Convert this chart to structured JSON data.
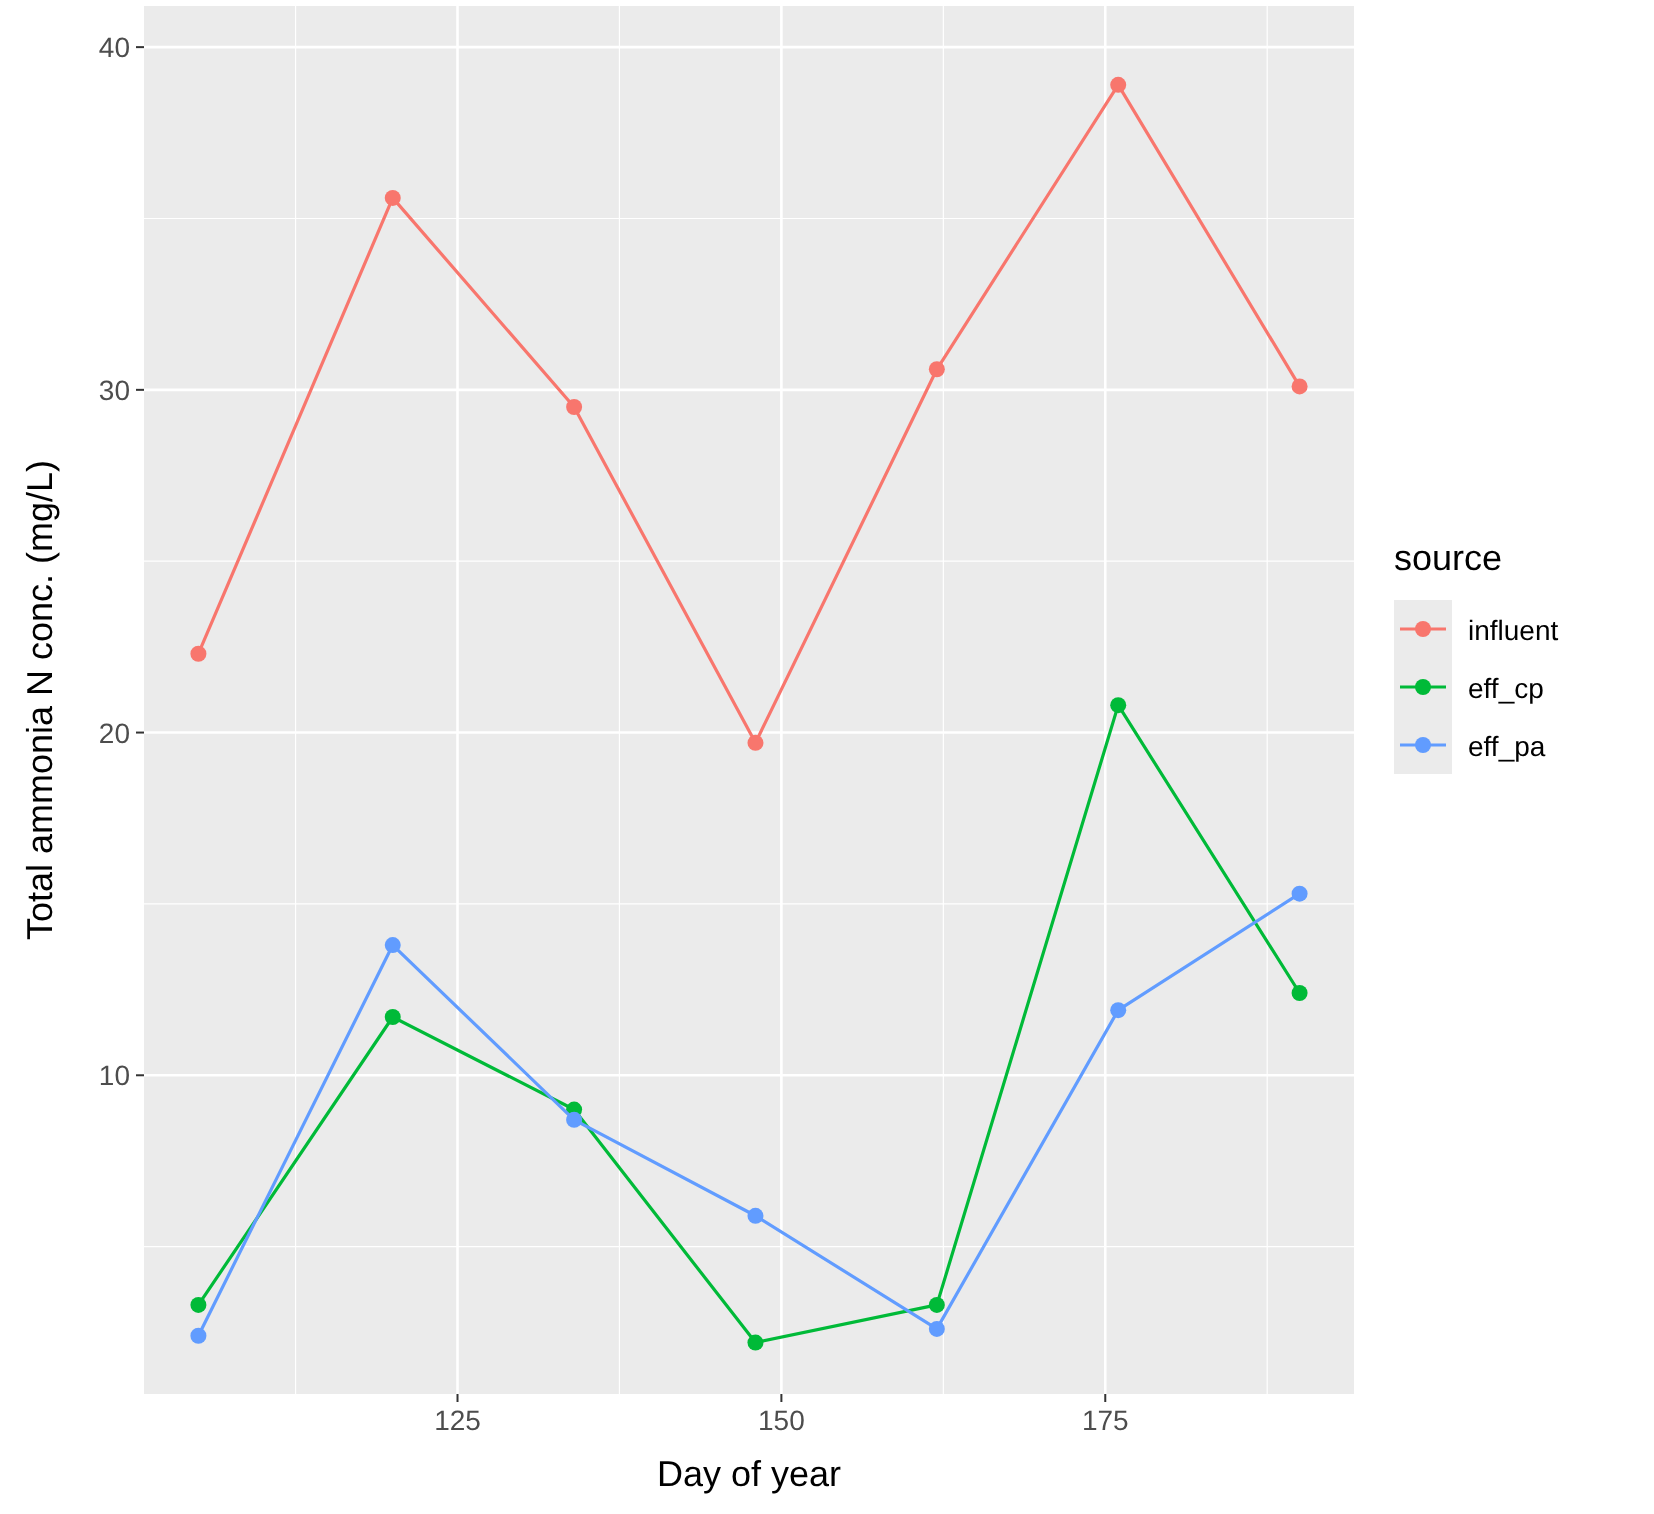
{
  "chart_data": {
    "type": "line",
    "xlabel": "Day of year",
    "ylabel": "Total ammonia N conc. (mg/L)",
    "legend_title": "source",
    "x": [
      105,
      120,
      134,
      148,
      162,
      176,
      190
    ],
    "series": [
      {
        "name": "influent",
        "color": "#f8766d",
        "values": [
          22.3,
          35.6,
          29.5,
          19.7,
          30.6,
          38.9,
          30.1
        ]
      },
      {
        "name": "eff_cp",
        "color": "#00ba38",
        "values": [
          3.3,
          11.7,
          9.0,
          2.2,
          3.3,
          20.8,
          12.4
        ]
      },
      {
        "name": "eff_pa",
        "color": "#619cff",
        "values": [
          2.4,
          13.8,
          8.7,
          5.9,
          2.6,
          11.9,
          15.3
        ]
      }
    ],
    "xlim": [
      100.8,
      194.2
    ],
    "ylim": [
      0.7,
      41.2
    ],
    "xticks": [
      125,
      150,
      175
    ],
    "yticks": [
      10,
      20,
      30,
      40
    ],
    "grid": true,
    "legend": "right",
    "marker": "circle",
    "line_style": "solid"
  }
}
